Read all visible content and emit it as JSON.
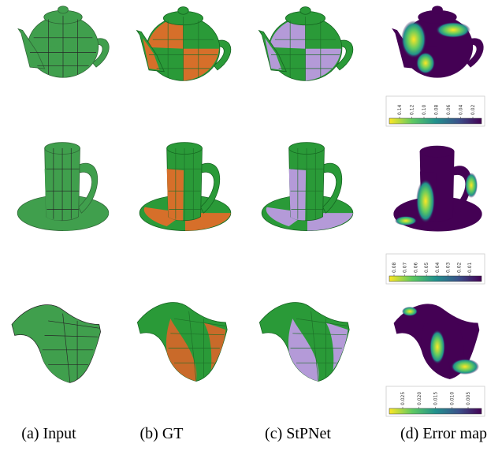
{
  "figure": {
    "captions": [
      "(a) Input",
      "(b) GT",
      "(c) StPNet",
      "(d) Error map"
    ],
    "colorbars": [
      {
        "ticks": [
          "0.14",
          "0.12",
          "0.10",
          "0.08",
          "0.06",
          "0.04",
          "0.02"
        ]
      },
      {
        "ticks": [
          "0.08",
          "0.07",
          "0.06",
          "0.05",
          "0.04",
          "0.03",
          "0.02",
          "0.01"
        ]
      },
      {
        "ticks": [
          "0.025",
          "0.020",
          "0.015",
          "0.010",
          "0.005"
        ]
      }
    ]
  }
}
